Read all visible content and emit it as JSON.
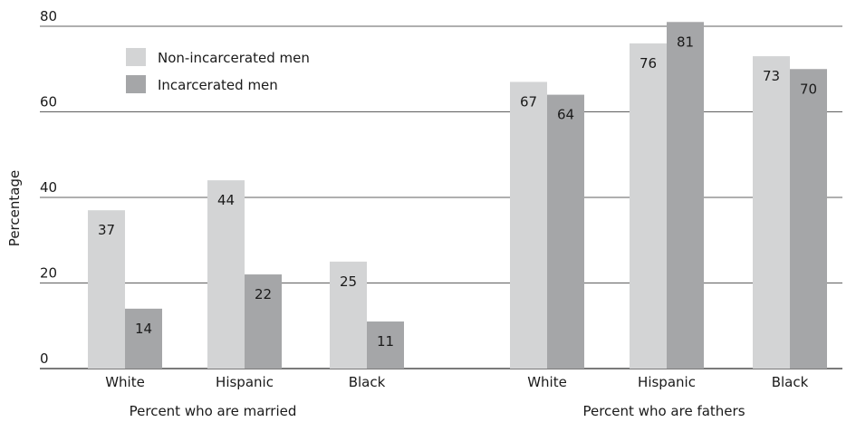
{
  "chart_data": {
    "type": "bar",
    "title": "",
    "ylabel": "Percentage",
    "ylim": [
      0,
      80
    ],
    "yticks": [
      "0",
      "20",
      "40",
      "60",
      "80"
    ],
    "grid": true,
    "legend_position": "top-left",
    "groups": [
      {
        "label": "Percent who are married",
        "categories": [
          "White",
          "Hispanic",
          "Black"
        ],
        "series": [
          {
            "name": "Non-incarcerated men",
            "values": [
              37,
              44,
              25
            ]
          },
          {
            "name": "Incarcerated men",
            "values": [
              14,
              22,
              11
            ]
          }
        ]
      },
      {
        "label": "Percent who are fathers",
        "categories": [
          "White",
          "Hispanic",
          "Black"
        ],
        "series": [
          {
            "name": "Non-incarcerated men",
            "values": [
              67,
              76,
              73
            ]
          },
          {
            "name": "Incarcerated men",
            "values": [
              64,
              81,
              70
            ]
          }
        ]
      }
    ],
    "legend": [
      "Non-incarcerated men",
      "Incarcerated men"
    ],
    "colors": {
      "Non-incarcerated men": "#d3d4d5",
      "Incarcerated men": "#a5a6a8"
    }
  }
}
